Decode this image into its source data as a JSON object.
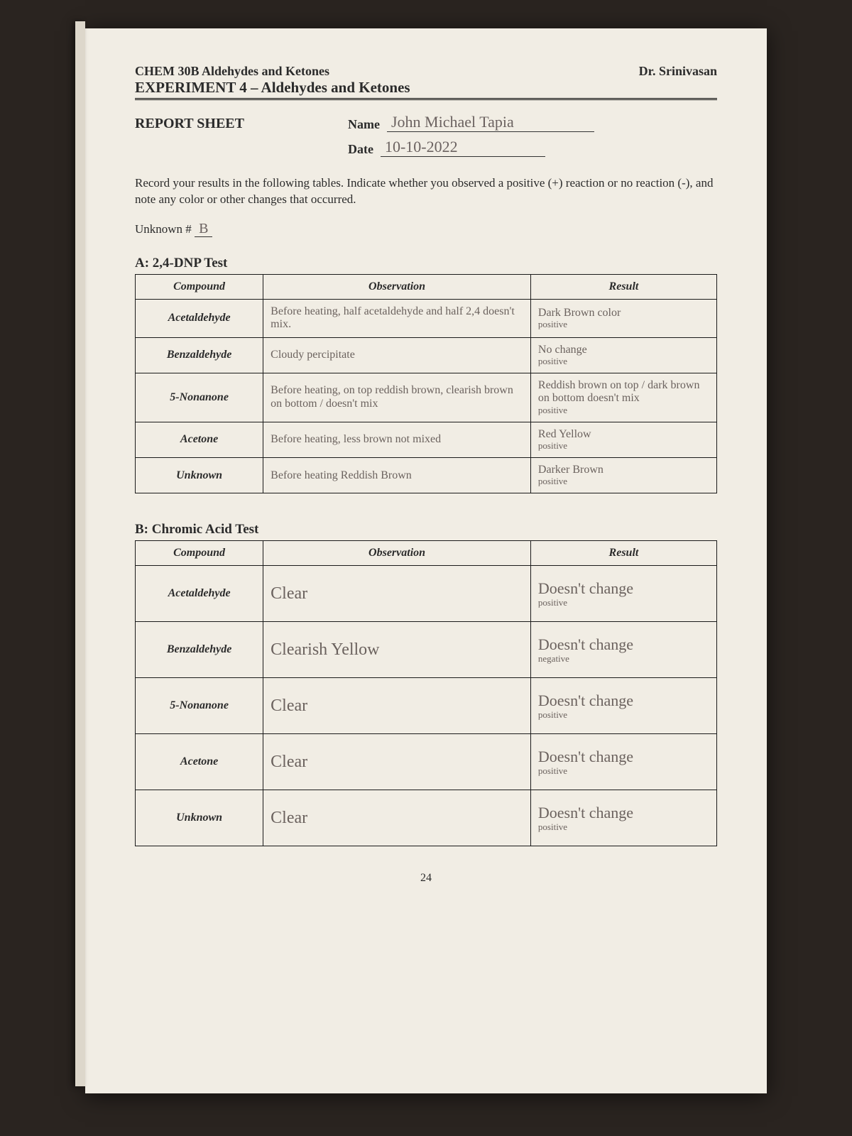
{
  "header": {
    "course": "CHEM 30B  Aldehydes and Ketones",
    "instructor": "Dr. Srinivasan",
    "experiment": "EXPERIMENT 4 –  Aldehydes and Ketones"
  },
  "report": {
    "title": "REPORT SHEET",
    "name_label": "Name",
    "name_value": "John Michael Tapia",
    "date_label": "Date",
    "date_value": "10-10-2022"
  },
  "instructions": "Record your results in the following tables. Indicate whether you observed a positive (+) reaction or no reaction (-), and note any color or other changes that occurred.",
  "unknown": {
    "label": "Unknown #",
    "value": "B"
  },
  "tableA": {
    "title": "A: 2,4-DNP Test",
    "headers": {
      "c1": "Compound",
      "c2": "Observation",
      "c3": "Result"
    },
    "rows": [
      {
        "compound": "Acetaldehyde",
        "obs": "Before heating, half acetaldehyde and half 2,4 doesn't mix.",
        "res": "Dark Brown color",
        "res_sub": "positive"
      },
      {
        "compound": "Benzaldehyde",
        "obs": "Cloudy percipitate",
        "res": "No change",
        "res_sub": "positive"
      },
      {
        "compound": "5-Nonanone",
        "obs": "Before heating, on top reddish brown, clearish brown on bottom / doesn't mix",
        "res": "Reddish brown on top / dark brown on bottom doesn't mix",
        "res_sub": "positive"
      },
      {
        "compound": "Acetone",
        "obs": "Before heating, less brown not mixed",
        "res": "Red Yellow",
        "res_sub": "positive"
      },
      {
        "compound": "Unknown",
        "obs": "Before heating Reddish Brown",
        "res": "Darker Brown",
        "res_sub": "positive"
      }
    ]
  },
  "tableB": {
    "title": "B: Chromic Acid Test",
    "headers": {
      "c1": "Compound",
      "c2": "Observation",
      "c3": "Result"
    },
    "rows": [
      {
        "compound": "Acetaldehyde",
        "obs": "Clear",
        "res": "Doesn't change",
        "res_sub": "positive"
      },
      {
        "compound": "Benzaldehyde",
        "obs": "Clearish Yellow",
        "res": "Doesn't change",
        "res_sub": "negative"
      },
      {
        "compound": "5-Nonanone",
        "obs": "Clear",
        "res": "Doesn't change",
        "res_sub": "positive"
      },
      {
        "compound": "Acetone",
        "obs": "Clear",
        "res": "Doesn't change",
        "res_sub": "positive"
      },
      {
        "compound": "Unknown",
        "obs": "Clear",
        "res": "Doesn't change",
        "res_sub": "positive"
      }
    ]
  },
  "page_number": "24"
}
